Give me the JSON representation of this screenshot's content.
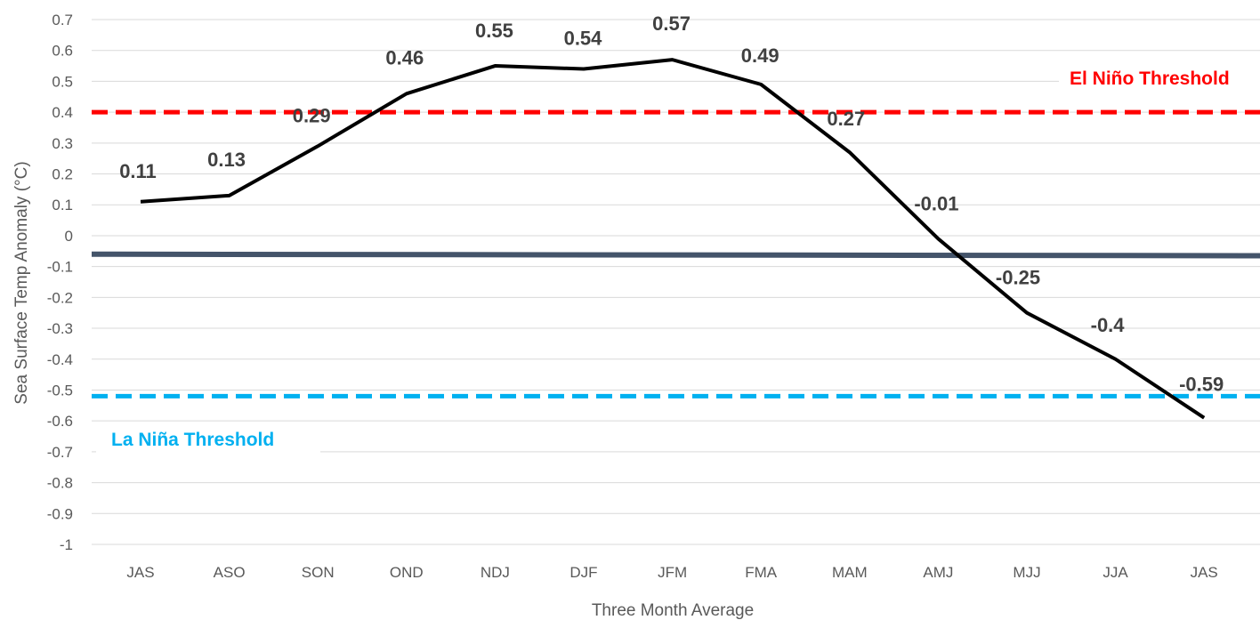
{
  "chart_data": {
    "type": "line",
    "title": "",
    "xlabel": "Three Month Average",
    "ylabel": "Sea Surface Temp Anomaly (°C)",
    "ylim": [
      -1,
      0.7
    ],
    "yticks": [
      0.7,
      0.6,
      0.5,
      0.4,
      0.3,
      0.2,
      0.1,
      0,
      -0.1,
      -0.2,
      -0.3,
      -0.4,
      -0.5,
      -0.6,
      -0.7,
      -0.8,
      -0.9,
      -1
    ],
    "categories": [
      "JAS",
      "ASO",
      "SON",
      "OND",
      "NDJ",
      "DJF",
      "JFM",
      "FMA",
      "MAM",
      "AMJ",
      "MJJ",
      "JJA",
      "JAS"
    ],
    "series": [
      {
        "values": [
          0.11,
          0.13,
          0.29,
          0.46,
          0.55,
          0.54,
          0.57,
          0.49,
          0.27,
          -0.01,
          -0.25,
          -0.4,
          -0.59
        ],
        "labels": [
          "0.11",
          "0.13",
          "0.29",
          "0.46",
          "0.55",
          "0.54",
          "0.57",
          "0.49",
          "0.27",
          "-0.01",
          "-0.25",
          "-0.4",
          "-0.59"
        ],
        "color": "#000000"
      }
    ],
    "thresholds": [
      {
        "label": "El Niño Threshold",
        "value": 0.4,
        "color": "#ff0000",
        "style": "dashed"
      },
      {
        "label": "La Niña Threshold",
        "value": -0.52,
        "color": "#00b0f0",
        "style": "dashed"
      }
    ],
    "reference_line": {
      "start_value": -0.06,
      "end_value": -0.065,
      "color": "#44546a"
    },
    "grid": true,
    "legend": "none"
  }
}
